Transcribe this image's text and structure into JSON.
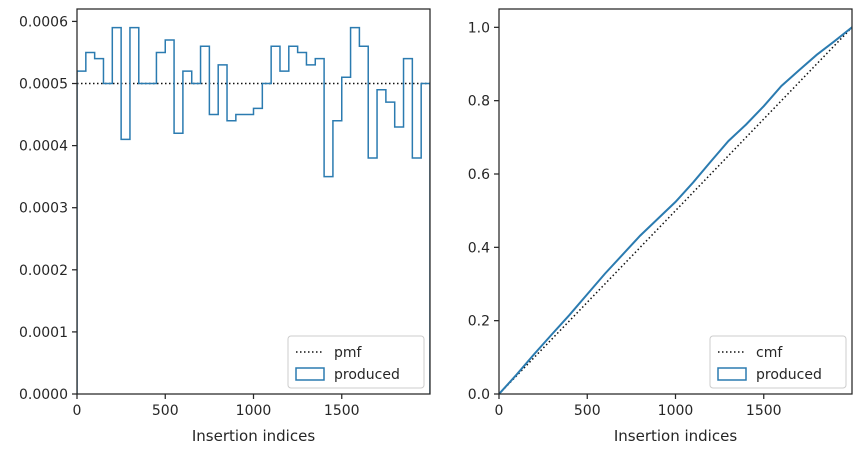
{
  "colors": {
    "produced": "#2b7bb0",
    "reference": "#111111",
    "axes": "#262626"
  },
  "chart_data": [
    {
      "type": "line",
      "panel": "left",
      "subtype": "step-histogram",
      "xlabel": "Insertion indices",
      "ylabel": "",
      "xlim": [
        0,
        2000
      ],
      "ylim": [
        0,
        0.00062
      ],
      "xticks": [
        0,
        500,
        1000,
        1500
      ],
      "xtick_labels": [
        "0",
        "500",
        "1000",
        "1500"
      ],
      "yticks": [
        0,
        0.0001,
        0.0002,
        0.0003,
        0.0004,
        0.0005,
        0.0006
      ],
      "ytick_labels": [
        "0.0000",
        "0.0001",
        "0.0002",
        "0.0003",
        "0.0004",
        "0.0005",
        "0.0006"
      ],
      "grid": false,
      "legend_position": "lower-right",
      "series": [
        {
          "name": "pmf",
          "style": "dotted",
          "color": "#111111",
          "x": [
            0,
            2000
          ],
          "y": [
            0.0005,
            0.0005
          ]
        },
        {
          "name": "produced",
          "style": "step-outline",
          "color": "#2b7bb0",
          "bin_width": 50,
          "bin_edges_start": 0,
          "values": [
            0.00052,
            0.00055,
            0.00054,
            0.0005,
            0.00059,
            0.00041,
            0.00059,
            0.0005,
            0.0005,
            0.00055,
            0.00057,
            0.00042,
            0.00052,
            0.0005,
            0.00056,
            0.00045,
            0.00053,
            0.00044,
            0.00045,
            0.00045,
            0.00046,
            0.0005,
            0.00056,
            0.00052,
            0.00056,
            0.00055,
            0.00053,
            0.00054,
            0.00035,
            0.00044,
            0.00051,
            0.00059,
            0.00056,
            0.00038,
            0.00049,
            0.00047,
            0.00043,
            0.00054,
            0.00038,
            0.0005
          ]
        }
      ]
    },
    {
      "type": "line",
      "panel": "right",
      "xlabel": "Insertion indices",
      "ylabel": "",
      "xlim": [
        0,
        2000
      ],
      "ylim": [
        0,
        1.05
      ],
      "xticks": [
        0,
        500,
        1000,
        1500
      ],
      "xtick_labels": [
        "0",
        "500",
        "1000",
        "1500"
      ],
      "yticks": [
        0,
        0.2,
        0.4,
        0.6,
        0.8,
        1.0
      ],
      "ytick_labels": [
        "0.0",
        "0.2",
        "0.4",
        "0.6",
        "0.8",
        "1.0"
      ],
      "grid": false,
      "legend_position": "lower-right",
      "series": [
        {
          "name": "cmf",
          "style": "dotted",
          "color": "#111111",
          "x": [
            0,
            2000
          ],
          "y": [
            0,
            1.0
          ]
        },
        {
          "name": "produced",
          "style": "solid",
          "color": "#2b7bb0",
          "x": [
            0,
            100,
            200,
            300,
            400,
            500,
            600,
            700,
            800,
            900,
            1000,
            1100,
            1200,
            1300,
            1400,
            1500,
            1600,
            1700,
            1800,
            1900,
            2000
          ],
          "y": [
            0,
            0.053,
            0.109,
            0.163,
            0.216,
            0.272,
            0.328,
            0.38,
            0.432,
            0.478,
            0.524,
            0.577,
            0.634,
            0.69,
            0.735,
            0.785,
            0.84,
            0.883,
            0.925,
            0.962,
            1.0
          ]
        }
      ]
    }
  ]
}
